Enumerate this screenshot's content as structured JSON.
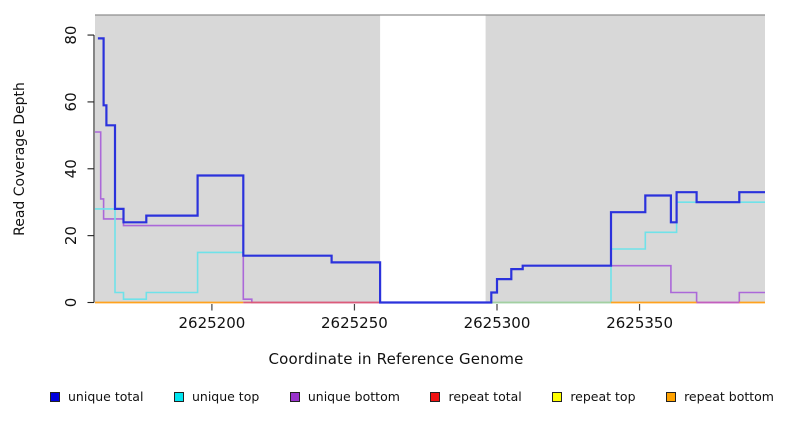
{
  "chart_data": {
    "type": "line",
    "subtype": "step-coverage",
    "title": "",
    "xlabel": "Coordinate in Reference Genome",
    "ylabel": "Read Coverage Depth",
    "xlim": [
      2625159,
      2625394
    ],
    "ylim": [
      0,
      86
    ],
    "x_ticks": [
      "2625200",
      "2625250",
      "2625300",
      "2625350"
    ],
    "x_tick_values": [
      2625200,
      2625250,
      2625300,
      2625350
    ],
    "y_ticks": [
      "0",
      "20",
      "40",
      "60",
      "80"
    ],
    "y_tick_values": [
      0,
      20,
      40,
      60,
      80
    ],
    "grid": "off",
    "legend_position": "bottom",
    "panel_color": "#d8d8d8",
    "panel_top_line_color": "#8f8f8f",
    "background_panels": [
      {
        "from": 2625159,
        "to": 2625259
      },
      {
        "from": 2625296,
        "to": 2625394
      }
    ],
    "masked_white_region": [
      2625259,
      2625296
    ],
    "series": [
      {
        "name": "unique bottom",
        "color": "#ab68d9",
        "width": 1.6,
        "flat_zero": false,
        "steps": [
          [
            2625159,
            51
          ],
          [
            2625161,
            31
          ],
          [
            2625162,
            25
          ],
          [
            2625169,
            23
          ],
          [
            2625211,
            1
          ],
          [
            2625214,
            0
          ],
          [
            2625298,
            3
          ],
          [
            2625300,
            7
          ],
          [
            2625305,
            10
          ],
          [
            2625309,
            11
          ],
          [
            2625361,
            3
          ],
          [
            2625370,
            0
          ],
          [
            2625385,
            3
          ]
        ]
      },
      {
        "name": "unique top",
        "color": "#6fe2e9",
        "width": 1.6,
        "flat_zero": false,
        "steps": [
          [
            2625159,
            28
          ],
          [
            2625166,
            3
          ],
          [
            2625169,
            1
          ],
          [
            2625177,
            3
          ],
          [
            2625195,
            15
          ],
          [
            2625211,
            14
          ],
          [
            2625242,
            12
          ],
          [
            2625259,
            0
          ],
          [
            2625340,
            16
          ],
          [
            2625352,
            21
          ],
          [
            2625363,
            30
          ]
        ]
      },
      {
        "name": "unique total",
        "color": "#2b32dc",
        "width": 2.2,
        "flat_zero": false,
        "steps": [
          [
            2625160,
            79
          ],
          [
            2625162,
            59
          ],
          [
            2625163,
            53
          ],
          [
            2625166,
            28
          ],
          [
            2625169,
            24
          ],
          [
            2625177,
            26
          ],
          [
            2625195,
            38
          ],
          [
            2625211,
            14
          ],
          [
            2625242,
            12
          ],
          [
            2625259,
            0
          ],
          [
            2625298,
            3
          ],
          [
            2625300,
            7
          ],
          [
            2625305,
            10
          ],
          [
            2625309,
            11
          ],
          [
            2625340,
            27
          ],
          [
            2625352,
            32
          ],
          [
            2625361,
            24
          ],
          [
            2625363,
            33
          ],
          [
            2625370,
            30
          ],
          [
            2625385,
            33
          ]
        ]
      },
      {
        "name": "repeat total",
        "color": "#dc5c79",
        "width": 1.8,
        "flat_zero": true,
        "steps": [
          [
            2625159,
            0
          ]
        ]
      },
      {
        "name": "repeat top",
        "color": "#e8e84a",
        "width": 1.8,
        "flat_zero": true,
        "steps": [
          [
            2625159,
            0
          ]
        ]
      },
      {
        "name": "repeat bottom",
        "color": "#ffa21e",
        "width": 1.8,
        "flat_zero": true,
        "steps": [
          [
            2625159,
            0
          ]
        ]
      }
    ],
    "baseline_segments": [
      {
        "from": 2625159,
        "to": 2625211,
        "color": "#ffa21e"
      },
      {
        "from": 2625211,
        "to": 2625259,
        "color": "#dc5c79"
      },
      {
        "from": 2625296,
        "to": 2625340,
        "color": "#a4cfa0"
      },
      {
        "from": 2625340,
        "to": 2625370,
        "color": "#ffa21e"
      },
      {
        "from": 2625370,
        "to": 2625385,
        "color": "#c35fbe"
      },
      {
        "from": 2625385,
        "to": 2625394,
        "color": "#ffa21e"
      }
    ]
  },
  "legend": {
    "items": [
      {
        "label": "unique total",
        "swatch_color": "#0000dd"
      },
      {
        "label": "unique top",
        "swatch_color": "#00e5f0"
      },
      {
        "label": "unique bottom",
        "swatch_color": "#9933cc"
      },
      {
        "label": "repeat total",
        "swatch_color": "#ee1111"
      },
      {
        "label": "repeat top",
        "swatch_color": "#ffff00"
      },
      {
        "label": "repeat bottom",
        "swatch_color": "#ffa200"
      }
    ]
  }
}
